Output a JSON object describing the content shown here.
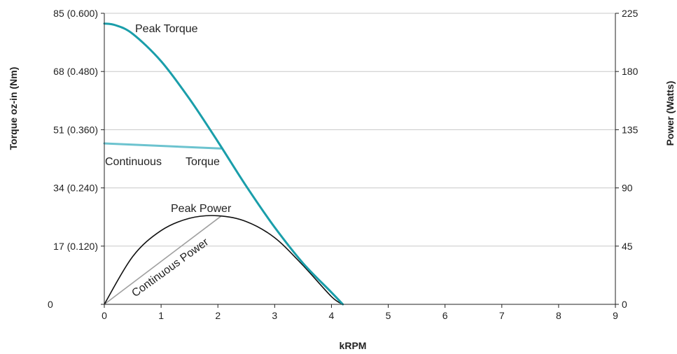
{
  "chart_data": {
    "type": "line",
    "xlabel": "kRPM",
    "ylabel_left": "Torque oz-in (Nm)",
    "ylabel_right": "Power (Watts)",
    "xlim": [
      0,
      9
    ],
    "ylim_left": [
      0,
      85
    ],
    "ylim_right": [
      0,
      225
    ],
    "x_ticks": [
      "0",
      "1",
      "2",
      "3",
      "4",
      "5",
      "6",
      "7",
      "8",
      "9"
    ],
    "y_left_ticks": [
      {
        "value": 0,
        "label": "0"
      },
      {
        "value": 17,
        "label": "17 (0.120)"
      },
      {
        "value": 34,
        "label": "34 (0.240)"
      },
      {
        "value": 51,
        "label": "51 (0.360)"
      },
      {
        "value": 68,
        "label": "68 (0.480)"
      },
      {
        "value": 85,
        "label": "85 (0.600)"
      }
    ],
    "y_right_ticks": [
      {
        "value": 0,
        "label": "0"
      },
      {
        "value": 45,
        "label": "45"
      },
      {
        "value": 90,
        "label": "90"
      },
      {
        "value": 135,
        "label": "135"
      },
      {
        "value": 180,
        "label": "180"
      },
      {
        "value": 225,
        "label": "225"
      }
    ],
    "grid": true,
    "series": [
      {
        "name": "Peak Torque",
        "axis": "left",
        "color": "#1a9eaa",
        "x": [
          0,
          0.2,
          0.5,
          1.0,
          1.5,
          2.0,
          2.5,
          3.0,
          3.5,
          4.0,
          4.2
        ],
        "y": [
          82,
          81.5,
          79,
          71,
          60,
          47.5,
          34.5,
          22.5,
          12,
          3.5,
          0
        ]
      },
      {
        "name": "Continuous Torque",
        "axis": "left",
        "color": "#6cc3cf",
        "x": [
          0,
          2.05
        ],
        "y": [
          47,
          45.5
        ]
      },
      {
        "name": "Peak Power",
        "axis": "right",
        "color": "#111111",
        "x": [
          0,
          0.5,
          1.0,
          1.5,
          2.0,
          2.5,
          3.0,
          3.5,
          4.0,
          4.2
        ],
        "y": [
          0,
          37,
          57,
          66.5,
          68.5,
          64,
          51.5,
          30,
          6,
          0
        ]
      },
      {
        "name": "Continuous Power",
        "axis": "right",
        "color": "#a0a0a0",
        "x": [
          0,
          2.05
        ],
        "y": [
          0,
          68
        ]
      }
    ],
    "annotations": [
      {
        "text": "Peak Torque",
        "series": "Peak Torque"
      },
      {
        "text": "Continuous",
        "series": "Continuous Torque"
      },
      {
        "text": "Torque",
        "series": "Continuous Torque"
      },
      {
        "text": "Peak Power",
        "series": "Peak Power"
      },
      {
        "text": "Continuous Power",
        "series": "Continuous Power"
      }
    ]
  }
}
